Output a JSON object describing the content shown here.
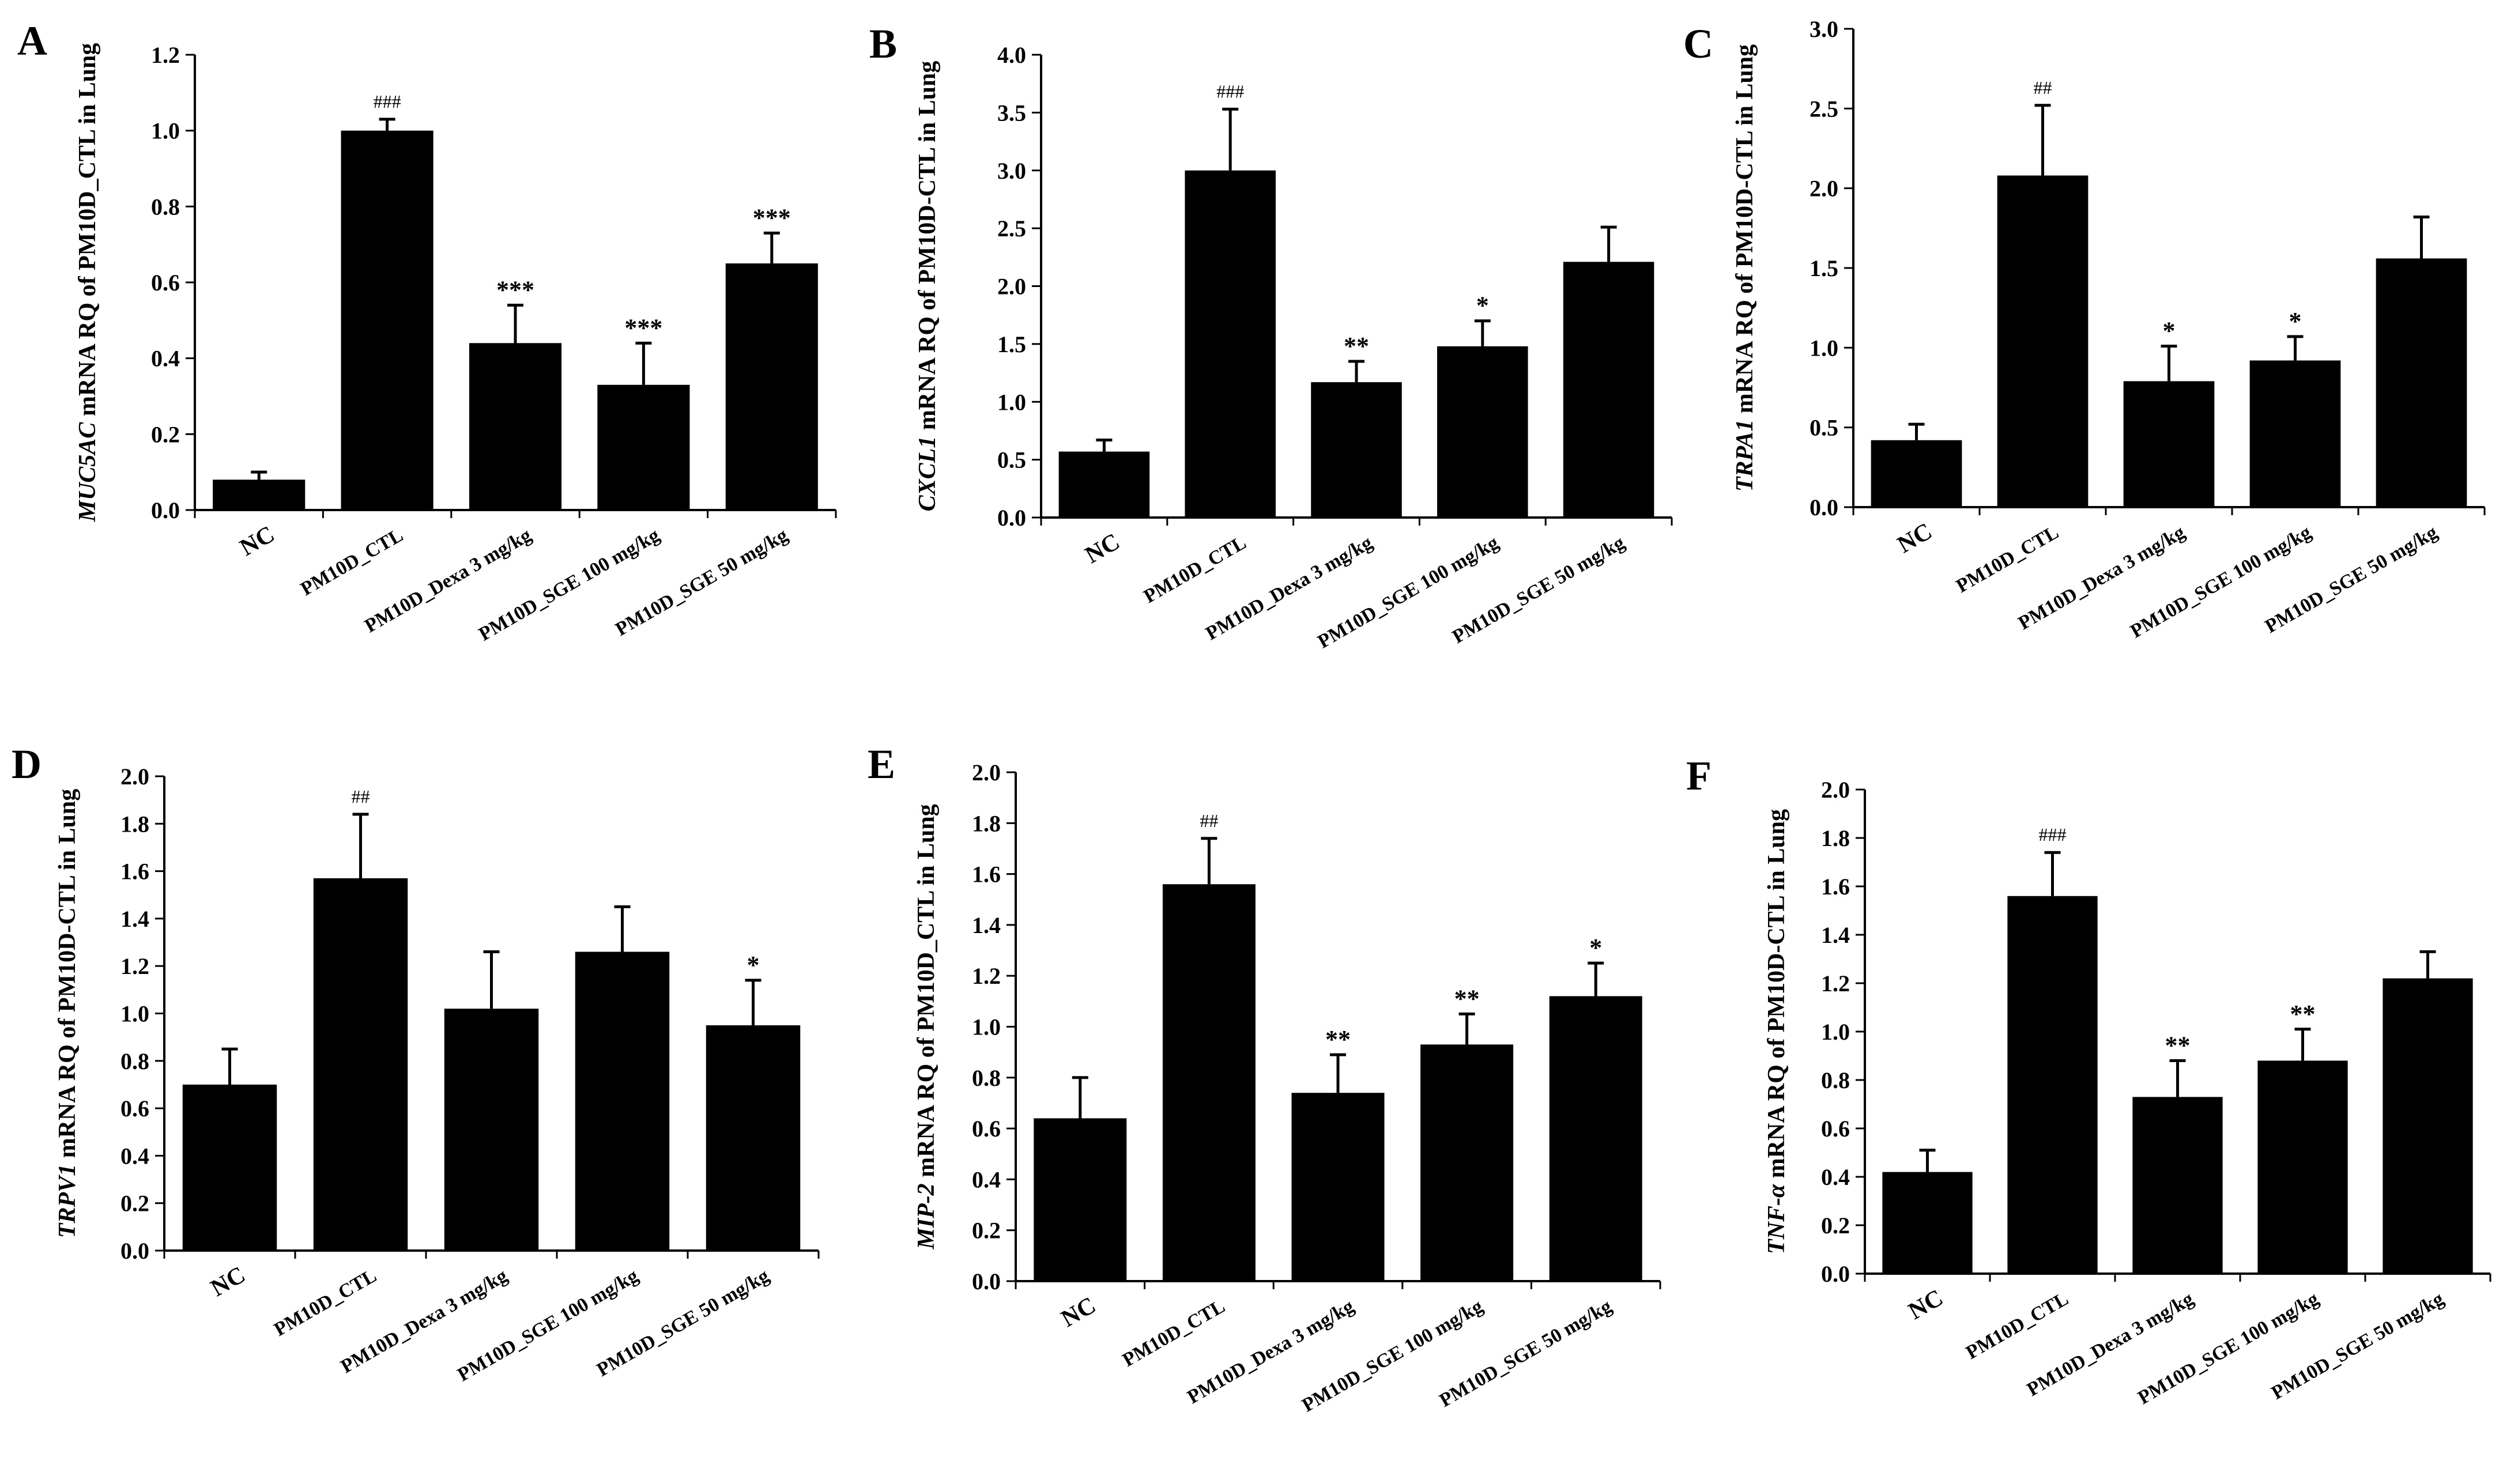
{
  "chart_data": [
    {
      "type": "bar",
      "panel_label": "A",
      "ylabel_gene": "MUC5AC",
      "ylabel_rest": " mRNA RQ of PM10D_CTL in Lung",
      "categories": [
        "NC",
        "PM10D_CTL",
        "PM10D_Dexa 3 mg/kg",
        "PM10D_SGE 100 mg/kg",
        "PM10D_SGE 50 mg/kg"
      ],
      "values": [
        0.08,
        1.0,
        0.44,
        0.33,
        0.65
      ],
      "errors": [
        0.02,
        0.03,
        0.1,
        0.11,
        0.08
      ],
      "annotations": [
        "",
        "###",
        "***",
        "***",
        "***"
      ],
      "ylim": [
        0,
        1.2
      ],
      "yticks": [
        "0.0",
        "0.2",
        "0.4",
        "0.6",
        "0.8",
        "1.0",
        "1.2"
      ]
    },
    {
      "type": "bar",
      "panel_label": "B",
      "ylabel_gene": "CXCL1",
      "ylabel_rest": " mRNA RQ of PM10D-CTL in Lung",
      "categories": [
        "NC",
        "PM10D_CTL",
        "PM10D_Dexa 3 mg/kg",
        "PM10D_SGE 100 mg/kg",
        "PM10D_SGE 50 mg/kg"
      ],
      "values": [
        0.57,
        3.0,
        1.17,
        1.48,
        2.21
      ],
      "errors": [
        0.1,
        0.53,
        0.18,
        0.22,
        0.3
      ],
      "annotations": [
        "",
        "###",
        "**",
        "*",
        ""
      ],
      "ylim": [
        0,
        4.0
      ],
      "yticks": [
        "0.0",
        "0.5",
        "1.0",
        "1.5",
        "2.0",
        "2.5",
        "3.0",
        "3.5",
        "4.0"
      ]
    },
    {
      "type": "bar",
      "panel_label": "C",
      "ylabel_gene": "TRPA1",
      "ylabel_rest": " mRNA RQ of PM10D-CTL in Lung",
      "categories": [
        "NC",
        "PM10D_CTL",
        "PM10D_Dexa 3 mg/kg",
        "PM10D_SGE 100 mg/kg",
        "PM10D_SGE 50 mg/kg"
      ],
      "values": [
        0.42,
        2.08,
        0.79,
        0.92,
        1.56
      ],
      "errors": [
        0.1,
        0.44,
        0.22,
        0.15,
        0.26
      ],
      "annotations": [
        "",
        "##",
        "*",
        "*",
        ""
      ],
      "ylim": [
        0,
        3.0
      ],
      "yticks": [
        "0.0",
        "0.5",
        "1.0",
        "1.5",
        "2.0",
        "2.5",
        "3.0"
      ]
    },
    {
      "type": "bar",
      "panel_label": "D",
      "ylabel_gene": "TRPV1",
      "ylabel_rest": " mRNA RQ of PM10D-CTL in Lung",
      "categories": [
        "NC",
        "PM10D_CTL",
        "PM10D_Dexa 3 mg/kg",
        "PM10D_SGE 100 mg/kg",
        "PM10D_SGE 50 mg/kg"
      ],
      "values": [
        0.7,
        1.57,
        1.02,
        1.26,
        0.95
      ],
      "errors": [
        0.15,
        0.27,
        0.24,
        0.19,
        0.19
      ],
      "annotations": [
        "",
        "##",
        "",
        "",
        "*"
      ],
      "ylim": [
        0,
        2.0
      ],
      "yticks": [
        "0.0",
        "0.2",
        "0.4",
        "0.6",
        "0.8",
        "1.0",
        "1.2",
        "1.4",
        "1.6",
        "1.8",
        "2.0"
      ]
    },
    {
      "type": "bar",
      "panel_label": "E",
      "ylabel_gene": "MIP-2",
      "ylabel_rest": " mRNA RQ of PM10D_CTL in Lung",
      "categories": [
        "NC",
        "PM10D_CTL",
        "PM10D_Dexa 3 mg/kg",
        "PM10D_SGE 100 mg/kg",
        "PM10D_SGE 50 mg/kg"
      ],
      "values": [
        0.64,
        1.56,
        0.74,
        0.93,
        1.12
      ],
      "errors": [
        0.16,
        0.18,
        0.15,
        0.12,
        0.13
      ],
      "annotations": [
        "",
        "##",
        "**",
        "**",
        "*"
      ],
      "ylim": [
        0,
        2.0
      ],
      "yticks": [
        "0.0",
        "0.2",
        "0.4",
        "0.6",
        "0.8",
        "1.0",
        "1.2",
        "1.4",
        "1.6",
        "1.8",
        "2.0"
      ]
    },
    {
      "type": "bar",
      "panel_label": "F",
      "ylabel_gene": "TNF-α",
      "ylabel_rest": " mRNA RQ of PM10D-CTL in Lung",
      "categories": [
        "NC",
        "PM10D_CTL",
        "PM10D_Dexa 3 mg/kg",
        "PM10D_SGE 100 mg/kg",
        "PM10D_SGE 50 mg/kg"
      ],
      "values": [
        0.42,
        1.56,
        0.73,
        0.88,
        1.22
      ],
      "errors": [
        0.09,
        0.18,
        0.15,
        0.13,
        0.11
      ],
      "annotations": [
        "",
        "###",
        "**",
        "**",
        ""
      ],
      "ylim": [
        0,
        2.0
      ],
      "yticks": [
        "0.0",
        "0.2",
        "0.4",
        "0.6",
        "0.8",
        "1.0",
        "1.2",
        "1.4",
        "1.6",
        "1.8",
        "2.0"
      ]
    }
  ]
}
